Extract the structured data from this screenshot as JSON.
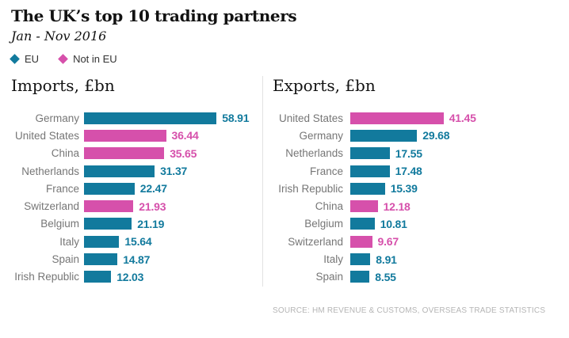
{
  "header": {
    "title": "The UK’s top 10 trading partners",
    "subtitle": "Jan - Nov 2016",
    "legend": [
      {
        "label": "EU",
        "group": "eu"
      },
      {
        "label": "Not in EU",
        "group": "not_eu"
      }
    ]
  },
  "colors": {
    "eu": "#127a9d",
    "not_eu": "#d650ab",
    "label_gray": "#767676",
    "title_black": "#121212",
    "source_gray": "#b5b5b5",
    "divider_gray": "#e2e2e2"
  },
  "charts": {
    "imports": {
      "title": "Imports, £bn",
      "rows": [
        {
          "country": "Germany",
          "value": 58.91,
          "group": "eu"
        },
        {
          "country": "United States",
          "value": 36.44,
          "group": "not_eu"
        },
        {
          "country": "China",
          "value": 35.65,
          "group": "not_eu"
        },
        {
          "country": "Netherlands",
          "value": 31.37,
          "group": "eu"
        },
        {
          "country": "France",
          "value": 22.47,
          "group": "eu"
        },
        {
          "country": "Switzerland",
          "value": 21.93,
          "group": "not_eu"
        },
        {
          "country": "Belgium",
          "value": 21.19,
          "group": "eu"
        },
        {
          "country": "Italy",
          "value": 15.64,
          "group": "eu"
        },
        {
          "country": "Spain",
          "value": 14.87,
          "group": "eu"
        },
        {
          "country": "Irish Republic",
          "value": 12.03,
          "group": "eu"
        }
      ]
    },
    "exports": {
      "title": "Exports, £bn",
      "rows": [
        {
          "country": "United States",
          "value": 41.45,
          "group": "not_eu"
        },
        {
          "country": "Germany",
          "value": 29.68,
          "group": "eu"
        },
        {
          "country": "Netherlands",
          "value": 17.55,
          "group": "eu"
        },
        {
          "country": "France",
          "value": 17.48,
          "group": "eu"
        },
        {
          "country": "Irish Republic",
          "value": 15.39,
          "group": "eu"
        },
        {
          "country": "China",
          "value": 12.18,
          "group": "not_eu"
        },
        {
          "country": "Belgium",
          "value": 10.81,
          "group": "eu"
        },
        {
          "country": "Switzerland",
          "value": 9.67,
          "group": "not_eu"
        },
        {
          "country": "Italy",
          "value": 8.91,
          "group": "eu"
        },
        {
          "country": "Spain",
          "value": 8.55,
          "group": "eu"
        }
      ]
    }
  },
  "source": "SOURCE: HM REVENUE & CUSTOMS, OVERSEAS TRADE STATISTICS",
  "chart_data": [
    {
      "type": "bar",
      "orientation": "horizontal",
      "title": "Imports, £bn",
      "suptitle": "The UK’s top 10 trading partners, Jan - Nov 2016",
      "categories": [
        "Germany",
        "United States",
        "China",
        "Netherlands",
        "France",
        "Switzerland",
        "Belgium",
        "Italy",
        "Spain",
        "Irish Republic"
      ],
      "values": [
        58.91,
        36.44,
        35.65,
        31.37,
        22.47,
        21.93,
        21.19,
        15.64,
        14.87,
        12.03
      ],
      "groups": [
        "EU",
        "Not in EU",
        "Not in EU",
        "EU",
        "EU",
        "Not in EU",
        "EU",
        "EU",
        "EU",
        "EU"
      ],
      "legend": [
        "EU",
        "Not in EU"
      ],
      "legend_colors": [
        "#127a9d",
        "#d650ab"
      ],
      "xlabel": "£bn",
      "ylabel": "",
      "xlim": [
        0,
        60
      ],
      "grid": false,
      "data_labels": true,
      "legend_position": "top-left"
    },
    {
      "type": "bar",
      "orientation": "horizontal",
      "title": "Exports, £bn",
      "suptitle": "The UK’s top 10 trading partners, Jan - Nov 2016",
      "categories": [
        "United States",
        "Germany",
        "Netherlands",
        "France",
        "Irish Republic",
        "China",
        "Belgium",
        "Switzerland",
        "Italy",
        "Spain"
      ],
      "values": [
        41.45,
        29.68,
        17.55,
        17.48,
        15.39,
        12.18,
        10.81,
        9.67,
        8.91,
        8.55
      ],
      "groups": [
        "Not in EU",
        "EU",
        "EU",
        "EU",
        "EU",
        "Not in EU",
        "EU",
        "Not in EU",
        "EU",
        "EU"
      ],
      "legend": [
        "EU",
        "Not in EU"
      ],
      "legend_colors": [
        "#127a9d",
        "#d650ab"
      ],
      "xlabel": "£bn",
      "ylabel": "",
      "xlim": [
        0,
        60
      ],
      "grid": false,
      "data_labels": true,
      "legend_position": "top-left"
    }
  ]
}
